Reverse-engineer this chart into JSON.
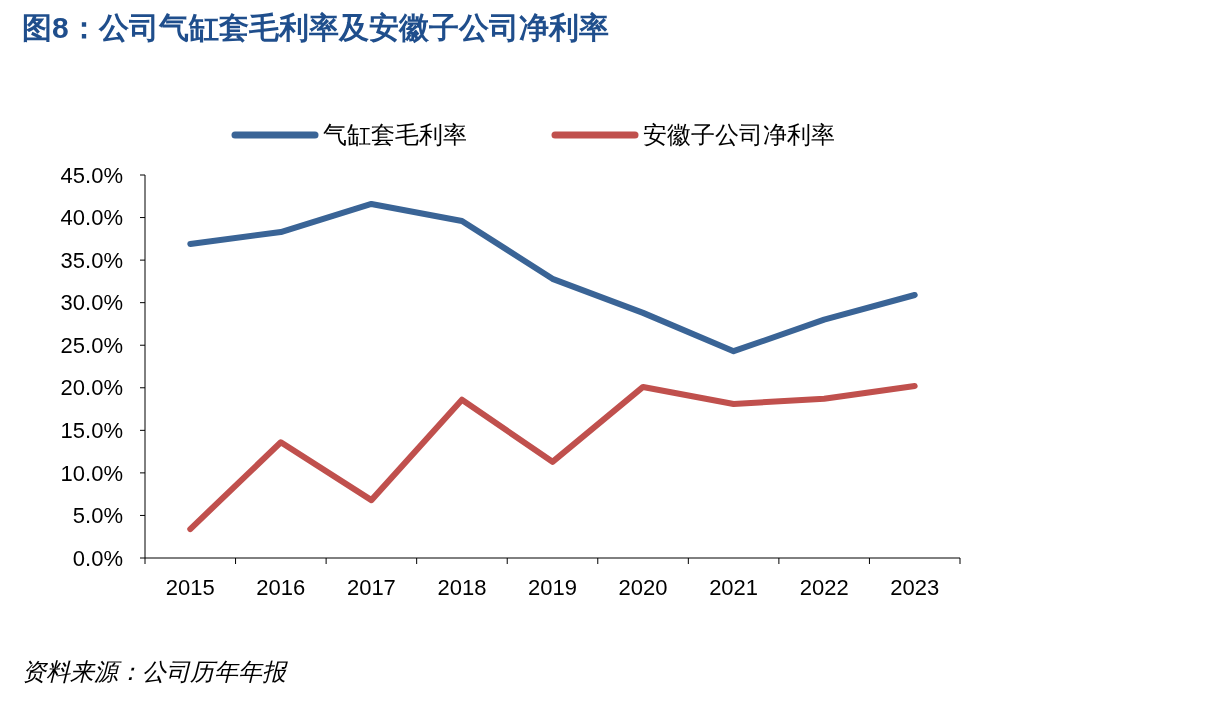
{
  "chart_data": {
    "type": "line",
    "title": "图8：公司气缸套毛利率及安徽子公司净利率",
    "categories": [
      "2015",
      "2016",
      "2017",
      "2018",
      "2019",
      "2020",
      "2021",
      "2022",
      "2023"
    ],
    "series": [
      {
        "name": "气缸套毛利率",
        "color": "#3a6496",
        "values": [
          36.9,
          38.3,
          41.6,
          39.6,
          32.8,
          28.8,
          24.3,
          28.0,
          30.9
        ]
      },
      {
        "name": "安徽子公司净利率",
        "color": "#c0504d",
        "values": [
          3.4,
          13.6,
          6.8,
          18.6,
          11.3,
          20.1,
          18.1,
          18.7,
          20.2
        ]
      }
    ],
    "ylim": [
      0,
      45
    ],
    "yticks": [
      {
        "value": 0,
        "label": "0.0%"
      },
      {
        "value": 5,
        "label": "5.0%"
      },
      {
        "value": 10,
        "label": "10.0%"
      },
      {
        "value": 15,
        "label": "15.0%"
      },
      {
        "value": 20,
        "label": "20.0%"
      },
      {
        "value": 25,
        "label": "25.0%"
      },
      {
        "value": 30,
        "label": "30.0%"
      },
      {
        "value": 35,
        "label": "35.0%"
      },
      {
        "value": 40,
        "label": "40.0%"
      },
      {
        "value": 45,
        "label": "45.0%"
      }
    ],
    "grid": false,
    "legend": "top",
    "marker": "none",
    "line_style": "solid",
    "annotations": [
      "资料来源：公司历年年报"
    ]
  }
}
